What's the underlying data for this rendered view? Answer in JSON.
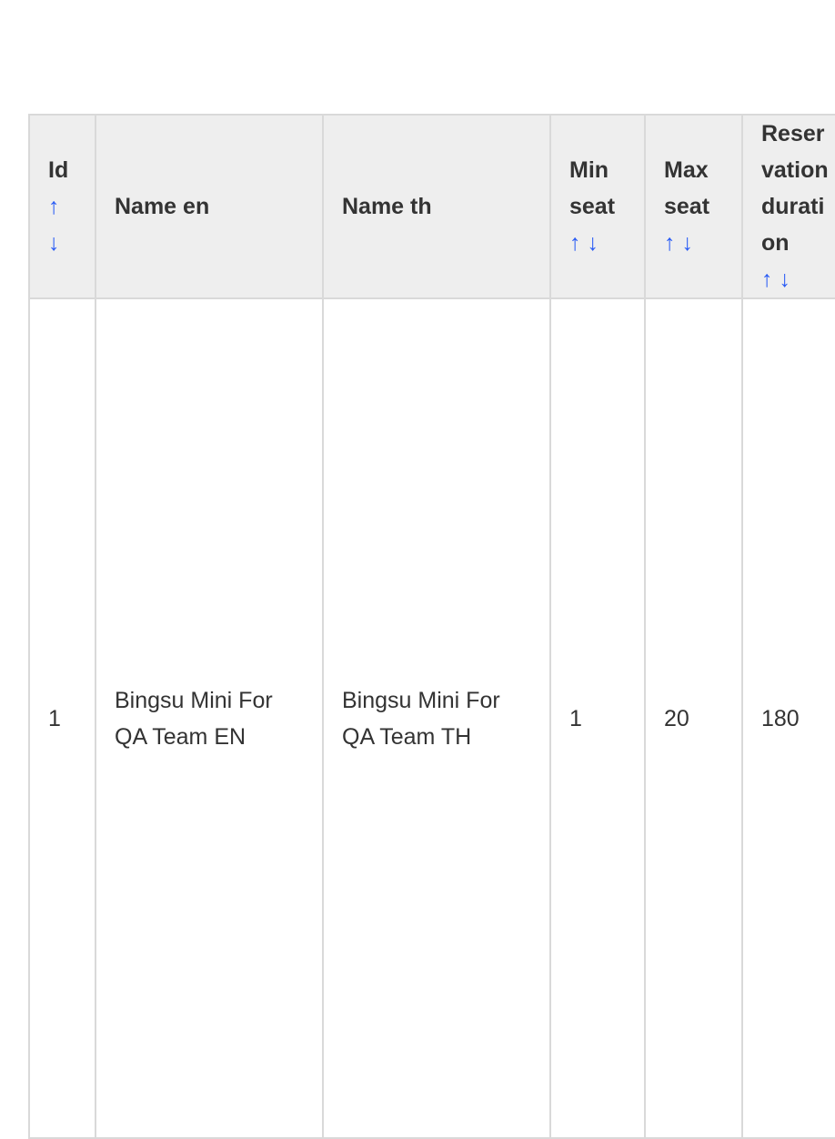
{
  "table": {
    "columns": [
      {
        "label": "Id",
        "sortable": true
      },
      {
        "label": "Name en",
        "sortable": false
      },
      {
        "label": "Name th",
        "sortable": false
      },
      {
        "label": "Min seat",
        "sortable": true
      },
      {
        "label": "Max seat",
        "sortable": true
      },
      {
        "label": "Reservation duration",
        "sortable": true
      }
    ],
    "sort_up": "↑",
    "sort_down": "↓",
    "rows": [
      {
        "id": "1",
        "name_en": "Bingsu Mini For QA Team EN",
        "name_th": "Bingsu Mini For QA Team TH",
        "min_seat": "1",
        "max_seat": "20",
        "reservation_duration": "180"
      }
    ]
  }
}
